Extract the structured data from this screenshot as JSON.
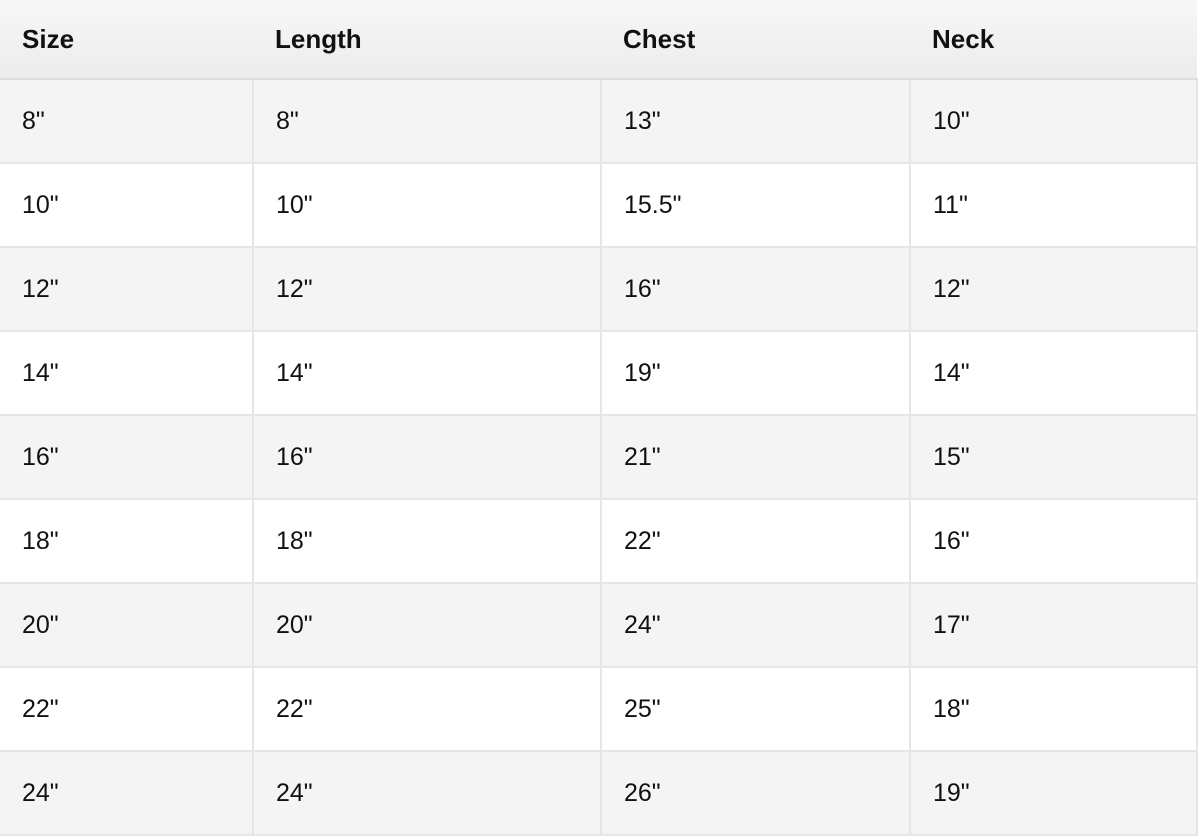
{
  "table": {
    "headers": [
      "Size",
      "Length",
      "Chest",
      "Neck"
    ],
    "rows": [
      [
        "8\"",
        "8\"",
        "13\"",
        "10\""
      ],
      [
        "10\"",
        "10\"",
        "15.5\"",
        "11\""
      ],
      [
        "12\"",
        "12\"",
        "16\"",
        "12\""
      ],
      [
        "14\"",
        "14\"",
        "19\"",
        "14\""
      ],
      [
        "16\"",
        "16\"",
        "21\"",
        "15\""
      ],
      [
        "18\"",
        "18\"",
        "22\"",
        "16\""
      ],
      [
        "20\"",
        "20\"",
        "24\"",
        "17\""
      ],
      [
        "22\"",
        "22\"",
        "25\"",
        "18\""
      ],
      [
        "24\"",
        "24\"",
        "26\"",
        "19\""
      ]
    ]
  }
}
